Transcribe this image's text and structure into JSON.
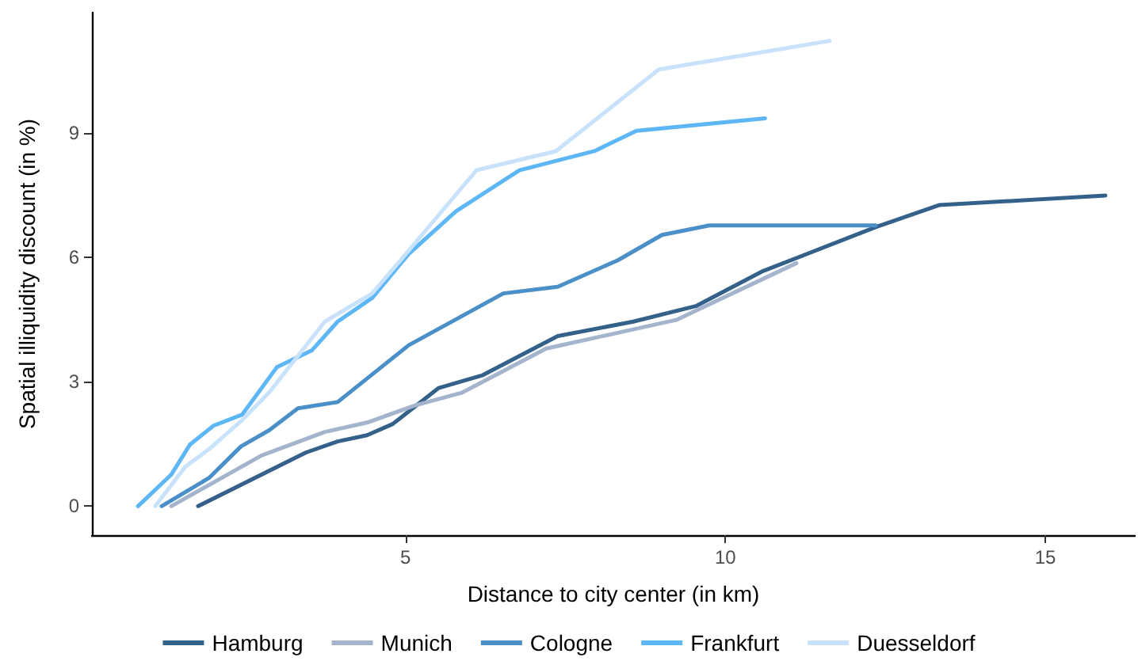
{
  "chart_data": {
    "type": "line",
    "xlabel": "Distance to city center (in km)",
    "ylabel": "Spatial illiquidity discount (in %)",
    "xlim": [
      0.1,
      16.4
    ],
    "xticks": [
      5,
      10,
      15
    ],
    "ylim": [
      -0.7,
      11.9
    ],
    "yticks": [
      0,
      3,
      6,
      9
    ],
    "grid": false,
    "legend": "bottom",
    "marker": "none",
    "line_style": "solid",
    "series": [
      {
        "name": "Hamburg",
        "color": "#34618a",
        "x": [
          1.76,
          3.44,
          3.94,
          4.4,
          4.8,
          5.52,
          6.21,
          7.38,
          8.56,
          9.55,
          10.59,
          12.35,
          13.34,
          15.94
        ],
        "values": [
          0,
          1.29,
          1.56,
          1.71,
          1.98,
          2.85,
          3.16,
          4.1,
          4.45,
          4.83,
          5.67,
          6.73,
          7.26,
          7.49
        ]
      },
      {
        "name": "Munich",
        "color": "#a3b4cc",
        "x": [
          1.34,
          2.75,
          3.74,
          4.41,
          5.15,
          5.89,
          7.2,
          9.23,
          11.11
        ],
        "values": [
          0,
          1.22,
          1.79,
          2.02,
          2.43,
          2.74,
          3.8,
          4.49,
          5.86
        ]
      },
      {
        "name": "Cologne",
        "color": "#4a8fc7",
        "x": [
          1.19,
          1.93,
          2.43,
          2.87,
          3.32,
          3.94,
          5.05,
          6.53,
          7.38,
          8.32,
          9.01,
          9.75,
          12.35
        ],
        "values": [
          0,
          0.68,
          1.44,
          1.83,
          2.36,
          2.51,
          3.88,
          5.13,
          5.29,
          5.93,
          6.54,
          6.77,
          6.77
        ]
      },
      {
        "name": "Frankfurt",
        "color": "#5db6f5",
        "x": [
          0.82,
          1.34,
          1.63,
          2.0,
          2.45,
          2.99,
          3.54,
          3.94,
          4.48,
          5.05,
          5.79,
          6.78,
          7.95,
          8.61,
          10.62
        ],
        "values": [
          0,
          0.76,
          1.48,
          1.94,
          2.21,
          3.35,
          3.76,
          4.45,
          5.02,
          6.08,
          7.11,
          8.1,
          8.56,
          9.05,
          9.35
        ]
      },
      {
        "name": "Duesseldorf",
        "color": "#c9e2fb",
        "x": [
          1.09,
          1.56,
          1.96,
          2.43,
          2.87,
          3.74,
          4.48,
          5.05,
          6.11,
          7.35,
          8.96,
          11.63
        ],
        "values": [
          0,
          0.95,
          1.41,
          2.05,
          2.74,
          4.45,
          5.13,
          6.16,
          8.1,
          8.56,
          10.53,
          11.22
        ]
      }
    ]
  }
}
